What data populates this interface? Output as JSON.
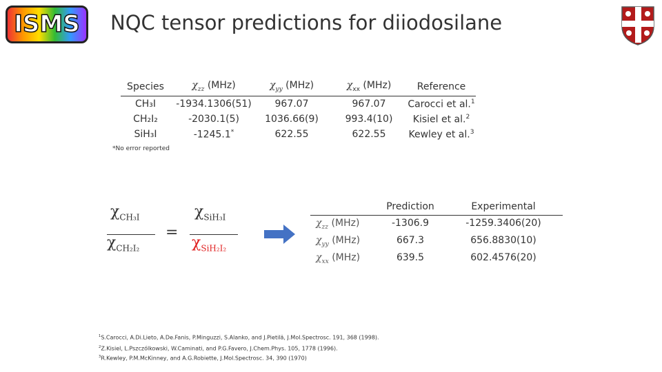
{
  "logo": "ISMS",
  "title": "NQC tensor predictions for diiodosilane",
  "table1": {
    "headers": [
      {
        "text": "Species"
      },
      {
        "symbol": "χ",
        "sub": "zz",
        "unit": "(MHz)"
      },
      {
        "symbol": "χ",
        "sub": "yy",
        "unit": "(MHz)"
      },
      {
        "symbol": "χ",
        "sub": "xx",
        "unit": "(MHz)"
      },
      {
        "text": "Reference"
      }
    ],
    "rows": [
      {
        "species": "CH₃I",
        "zz": "-1934.1306(51)",
        "yy": "967.07",
        "xx": "967.07",
        "ref": "Carocci et al.",
        "ref_sup": "1"
      },
      {
        "species": "CH₂I₂",
        "zz": "-2030.1(5)",
        "yy": "1036.66(9)",
        "xx": "993.4(10)",
        "ref": "Kisiel et al.",
        "ref_sup": "2"
      },
      {
        "species": "SiH₃I",
        "zz": "-1245.1",
        "zz_sup": "*",
        "yy": "622.55",
        "xx": "622.55",
        "ref": "Kewley et al.",
        "ref_sup": "3"
      }
    ],
    "footnote": "*No error reported"
  },
  "equation": {
    "symbol": "χ",
    "left_top": "CH₃I",
    "left_bottom": "CH₂I₂",
    "right_top": "SiH₃I",
    "right_bottom": "SiH₂I₂",
    "equals": "="
  },
  "table2": {
    "headers": [
      "Prediction",
      "Experimental"
    ],
    "rows": [
      {
        "symbol": "χ",
        "sub": "zz",
        "unit": "(MHz)",
        "prediction": "-1306.9",
        "experimental": "-1259.3406(20)"
      },
      {
        "symbol": "χ",
        "sub": "yy",
        "unit": "(MHz)",
        "prediction": "667.3",
        "experimental": "656.8830(10)"
      },
      {
        "symbol": "χ",
        "sub": "xx",
        "unit": "(MHz)",
        "prediction": "639.5",
        "experimental": "602.4576(20)"
      }
    ]
  },
  "references": [
    {
      "num": "1",
      "text": "S.Carocci, A.Di.Lieto, A.De.Fanis, P.Minguzzi, S.Alanko, and J.Pietilä, J.Mol.Spectrosc. 191, 368 (1998)."
    },
    {
      "num": "2",
      "text": "Z.Kisiel, L.Pszczólkowski, W.Caminati, and P.G.Favero, J.Chem.Phys. 105, 1778 (1996)."
    },
    {
      "num": "3",
      "text": "R.Kewley, P.M.McKinney, and A.G.Robiette, J.Mol.Spectrosc. 34, 390 (1970)"
    }
  ]
}
